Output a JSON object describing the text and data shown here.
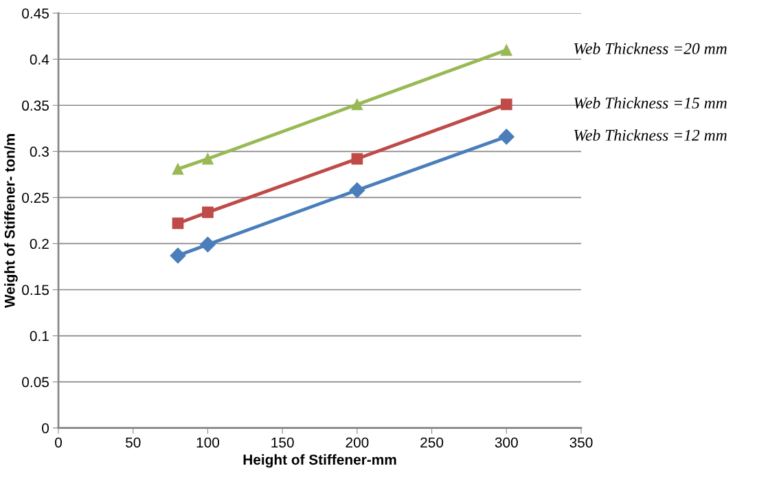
{
  "chart_data": {
    "type": "line",
    "xlabel": "Height of Stiffener-mm",
    "ylabel": "Weight of Stiffener- ton/m",
    "xlim": [
      0,
      350
    ],
    "xticks": [
      0,
      50,
      100,
      150,
      200,
      250,
      300,
      350
    ],
    "ylim": [
      0,
      0.45
    ],
    "yticks": [
      0,
      0.05,
      0.1,
      0.15,
      0.2,
      0.25,
      0.3,
      0.35,
      0.4,
      0.45
    ],
    "grid": "y",
    "x": [
      80,
      100,
      200,
      300
    ],
    "series": [
      {
        "name": "Web Thickness =12 mm",
        "color": "#4a7ebb",
        "marker": "diamond",
        "values": [
          0.187,
          0.199,
          0.258,
          0.316
        ]
      },
      {
        "name": "Web Thickness =15 mm",
        "color": "#be4b48",
        "marker": "square",
        "values": [
          0.222,
          0.234,
          0.292,
          0.351
        ]
      },
      {
        "name": "Web Thickness =20 mm",
        "color": "#98b954",
        "marker": "triangle",
        "values": [
          0.281,
          0.292,
          0.351,
          0.41
        ]
      }
    ]
  }
}
